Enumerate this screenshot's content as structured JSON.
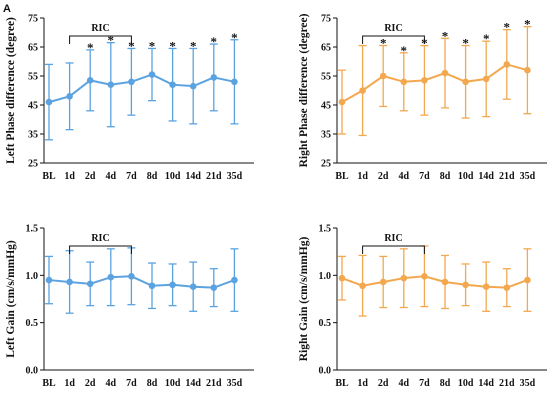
{
  "panel_label": "A",
  "colors": {
    "left": "#5BA3E0",
    "right": "#F3A84F",
    "axis": "#111111"
  },
  "chart_data": [
    {
      "id": "left-phase",
      "type": "line",
      "color": "left",
      "ylabel": "Left Phase difference (degree)",
      "ylim": [
        25,
        75
      ],
      "yticks": [
        25,
        35,
        45,
        55,
        65,
        75
      ],
      "categories": [
        "BL",
        "1d",
        "2d",
        "4d",
        "7d",
        "8d",
        "10d",
        "14d",
        "21d",
        "35d"
      ],
      "values": [
        46,
        48,
        53.5,
        52,
        53,
        55.5,
        52,
        51.5,
        54.5,
        53
      ],
      "errors": [
        13,
        11.5,
        10.5,
        14.5,
        11.5,
        9,
        12.5,
        13,
        11.5,
        14.5
      ],
      "significant": [
        false,
        false,
        true,
        true,
        true,
        true,
        true,
        true,
        true,
        true
      ],
      "star_symbol": "*",
      "bracket": {
        "label": "RIC",
        "from": "1d",
        "to": "7d"
      }
    },
    {
      "id": "right-phase",
      "type": "line",
      "color": "right",
      "ylabel": "Right Phase difference (degree)",
      "ylim": [
        25,
        75
      ],
      "yticks": [
        25,
        35,
        45,
        55,
        65,
        75
      ],
      "categories": [
        "BL",
        "1d",
        "2d",
        "4d",
        "7d",
        "8d",
        "10d",
        "14d",
        "21d",
        "35d"
      ],
      "values": [
        46,
        50,
        55,
        53,
        53.5,
        56,
        53,
        54,
        59,
        57
      ],
      "errors": [
        11,
        15.5,
        10.5,
        10,
        12,
        12,
        12.5,
        13,
        12,
        15
      ],
      "significant": [
        false,
        false,
        true,
        true,
        true,
        true,
        true,
        true,
        true,
        true
      ],
      "star_symbol": "*",
      "bracket": {
        "label": "RIC",
        "from": "1d",
        "to": "7d"
      }
    },
    {
      "id": "left-gain",
      "type": "line",
      "color": "left",
      "ylabel": "Left Gain (cm/s/mmHg)",
      "ylim": [
        0,
        1.5
      ],
      "yticks": [
        0,
        0.5,
        1.0,
        1.5
      ],
      "ytick_labels": [
        "0.0",
        "0.5",
        "1.0",
        "1.5"
      ],
      "categories": [
        "BL",
        "1d",
        "2d",
        "4d",
        "7d",
        "8d",
        "10d",
        "14d",
        "21d",
        "35d"
      ],
      "values": [
        0.95,
        0.93,
        0.91,
        0.98,
        0.99,
        0.89,
        0.9,
        0.88,
        0.87,
        0.95
      ],
      "errors": [
        0.25,
        0.33,
        0.23,
        0.3,
        0.3,
        0.24,
        0.22,
        0.26,
        0.2,
        0.33
      ],
      "significant": [
        false,
        false,
        false,
        false,
        false,
        false,
        false,
        false,
        false,
        false
      ],
      "star_symbol": "*",
      "bracket": {
        "label": "RIC",
        "from": "1d",
        "to": "7d"
      }
    },
    {
      "id": "right-gain",
      "type": "line",
      "color": "right",
      "ylabel": "Right Gain (cm/s/mmHg)",
      "ylim": [
        0,
        1.5
      ],
      "yticks": [
        0,
        0.5,
        1.0,
        1.5
      ],
      "ytick_labels": [
        "0.0",
        "0.5",
        "1.0",
        "1.5"
      ],
      "categories": [
        "BL",
        "1d",
        "2d",
        "4d",
        "7d",
        "8d",
        "10d",
        "14d",
        "21d",
        "35d"
      ],
      "values": [
        0.97,
        0.89,
        0.93,
        0.97,
        0.99,
        0.93,
        0.9,
        0.88,
        0.87,
        0.95
      ],
      "errors": [
        0.23,
        0.32,
        0.27,
        0.31,
        0.32,
        0.28,
        0.22,
        0.26,
        0.2,
        0.33
      ],
      "significant": [
        false,
        false,
        false,
        false,
        false,
        false,
        false,
        false,
        false,
        false
      ],
      "star_symbol": "*",
      "bracket": {
        "label": "RIC",
        "from": "1d",
        "to": "7d"
      }
    }
  ]
}
